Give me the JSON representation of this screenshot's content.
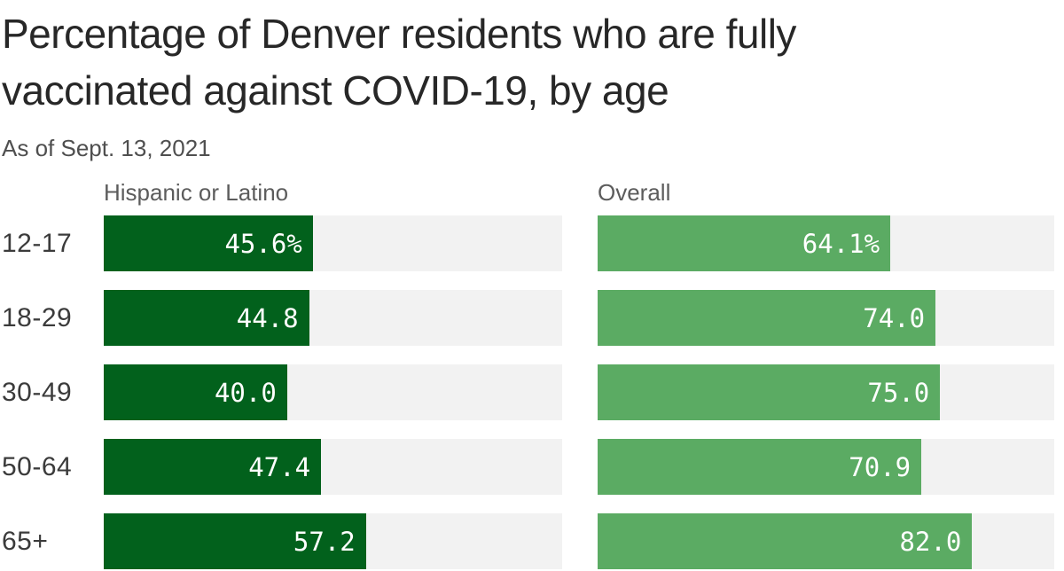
{
  "header": {
    "title": "Percentage of Denver residents who are fully vaccinated against COVID-19, by age",
    "subtitle": "As of Sept. 13, 2021"
  },
  "chart_data": {
    "type": "bar",
    "orientation": "horizontal",
    "title": "Percentage of Denver residents who are fully vaccinated against COVID-19, by age",
    "subtitle": "As of Sept. 13, 2021",
    "categories": [
      "12-17",
      "18-29",
      "30-49",
      "50-64",
      "65+"
    ],
    "series": [
      {
        "name": "Hispanic or Latino",
        "values": [
          45.6,
          44.8,
          40.0,
          47.4,
          57.2
        ],
        "labels": [
          "45.6%",
          "44.8",
          "40.0",
          "47.4",
          "57.2"
        ],
        "color": "#02611C"
      },
      {
        "name": "Overall",
        "values": [
          64.1,
          74.0,
          75.0,
          70.9,
          82.0
        ],
        "labels": [
          "64.1%",
          "74.0",
          "75.0",
          "70.9",
          "82.0"
        ],
        "color": "#5BAB63"
      }
    ],
    "xlim": [
      0,
      100
    ],
    "grid": false,
    "legend_position": "column-headers",
    "track_color": "#F2F2F2",
    "value_label_color": "#FFFFFF",
    "category_label_color": "#3B3B3B"
  }
}
